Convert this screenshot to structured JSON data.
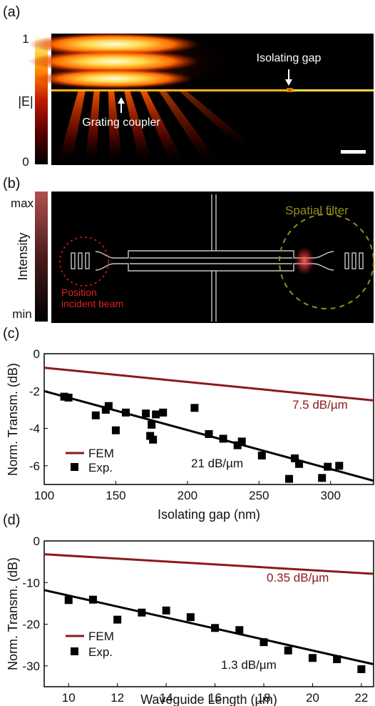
{
  "figure": {
    "panels": [
      {
        "label": "(a)"
      },
      {
        "label": "(b)"
      },
      {
        "label": "(c)"
      },
      {
        "label": "(d)"
      }
    ]
  },
  "panel_a": {
    "colorbar_label": "|E|",
    "colorbar_ticks": [
      "1",
      "0"
    ],
    "annotations": [
      "Isolating gap",
      "Grating coupler"
    ],
    "colormap": [
      "#000000",
      "#5a0000",
      "#c01a00",
      "#ff7a00",
      "#ffd84a",
      "#ffffff"
    ]
  },
  "panel_b": {
    "colorbar_label": "Intensity",
    "colorbar_ticks": [
      "max",
      "min"
    ],
    "annotations": {
      "spatial_filter": "Spatial filter",
      "position_line1": "Position",
      "position_line2": "incident beam"
    },
    "colors": {
      "spatial_filter": "#8f8f1e",
      "incident": "#d21a1a",
      "spot": "#ff5050"
    }
  },
  "chart_data": [
    {
      "type": "scatter",
      "panel": "(c)",
      "xlabel": "Isolating gap (nm)",
      "ylabel": "Norm. Transm. (dB)",
      "xlim": [
        100,
        330
      ],
      "ylim": [
        -7,
        0
      ],
      "xticks": [
        100,
        150,
        200,
        250,
        300
      ],
      "yticks": [
        0,
        -2,
        -4,
        -6
      ],
      "legend_position": "bottom-left",
      "series": [
        {
          "name": "FEM",
          "kind": "line",
          "color": "#8b1a1a",
          "x": [
            100,
            330
          ],
          "y": [
            -0.75,
            -2.5
          ]
        },
        {
          "name": "Exp.",
          "kind": "markers",
          "color": "#000000",
          "x": [
            114,
            117,
            136,
            143,
            145,
            150,
            157,
            171,
            174,
            175,
            176,
            178,
            183,
            205,
            215,
            225,
            235,
            238,
            252,
            271,
            275,
            278,
            294,
            298,
            306
          ],
          "y": [
            -2.3,
            -2.35,
            -3.3,
            -3.0,
            -2.8,
            -4.1,
            -3.15,
            -3.2,
            -4.4,
            -3.8,
            -4.6,
            -3.25,
            -3.15,
            -2.9,
            -4.3,
            -4.55,
            -4.9,
            -4.7,
            -5.45,
            -6.7,
            -5.6,
            -5.9,
            -6.65,
            -6.05,
            -6.0
          ]
        },
        {
          "name": "fit",
          "kind": "line",
          "color": "#000000",
          "x": [
            100,
            330
          ],
          "y": [
            -2.0,
            -6.8
          ]
        }
      ],
      "annotations": [
        {
          "text": "7.5 dB/µm",
          "color": "#8b1a1a"
        },
        {
          "text": "21 dB/µm",
          "color": "#000000"
        }
      ]
    },
    {
      "type": "scatter",
      "panel": "(d)",
      "xlabel": "Waveguide Length (µm)",
      "ylabel": "Norm. Transm. (dB)",
      "xlim": [
        9,
        22.5
      ],
      "ylim": [
        -35,
        0
      ],
      "xticks": [
        10,
        12,
        14,
        16,
        18,
        20,
        22
      ],
      "yticks": [
        0,
        -10,
        -20,
        -30
      ],
      "legend_position": "bottom-left",
      "series": [
        {
          "name": "FEM",
          "kind": "line",
          "color": "#8b1a1a",
          "x": [
            9,
            22.5
          ],
          "y": [
            -3.2,
            -7.9
          ]
        },
        {
          "name": "Exp.",
          "kind": "markers",
          "color": "#000000",
          "x": [
            10,
            11,
            12,
            13,
            14,
            15,
            16,
            17,
            18,
            19,
            20,
            21,
            22
          ],
          "y": [
            -14.2,
            -14.1,
            -18.9,
            -17.2,
            -16.7,
            -18.3,
            -20.9,
            -21.4,
            -24.3,
            -26.3,
            -28.1,
            -28.4,
            -30.8
          ]
        },
        {
          "name": "fit",
          "kind": "line",
          "color": "#000000",
          "x": [
            9,
            22.5
          ],
          "y": [
            -11.8,
            -29.6
          ]
        }
      ],
      "annotations": [
        {
          "text": "0.35 dB/µm",
          "color": "#8b1a1a"
        },
        {
          "text": "1.3 dB/µm",
          "color": "#000000"
        }
      ]
    }
  ]
}
